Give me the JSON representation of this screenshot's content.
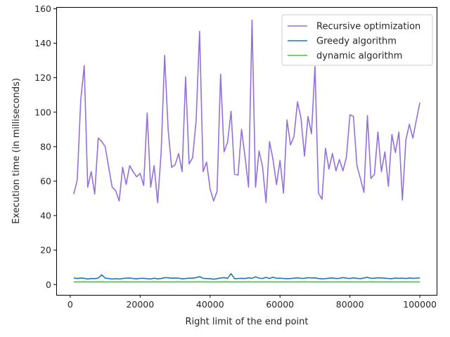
{
  "chart_data": {
    "type": "line",
    "title": "",
    "xlabel": "Right limit of the end point",
    "ylabel": "Execution time (in milliseconds)",
    "xlim": [
      -4000,
      105000
    ],
    "ylim": [
      -6,
      161
    ],
    "xticks": [
      0,
      20000,
      40000,
      60000,
      80000,
      100000
    ],
    "yticks": [
      0,
      20,
      40,
      60,
      80,
      100,
      120,
      140,
      160
    ],
    "grid": false,
    "legend_position": "top-right",
    "x": [
      1000,
      2000,
      3000,
      4000,
      5000,
      6000,
      7000,
      8000,
      9000,
      10000,
      11000,
      12000,
      13000,
      14000,
      15000,
      16000,
      17000,
      18000,
      19000,
      20000,
      21000,
      22000,
      23000,
      24000,
      25000,
      26000,
      27000,
      28000,
      29000,
      30000,
      31000,
      32000,
      33000,
      34000,
      35000,
      36000,
      37000,
      38000,
      39000,
      40000,
      41000,
      42000,
      43000,
      44000,
      45000,
      46000,
      47000,
      48000,
      49000,
      50000,
      51000,
      52000,
      53000,
      54000,
      55000,
      56000,
      57000,
      58000,
      59000,
      60000,
      61000,
      62000,
      63000,
      64000,
      65000,
      66000,
      67000,
      68000,
      69000,
      70000,
      71000,
      72000,
      73000,
      74000,
      75000,
      76000,
      77000,
      78000,
      79000,
      80000,
      81000,
      82000,
      83000,
      84000,
      85000,
      86000,
      87000,
      88000,
      89000,
      90000,
      91000,
      92000,
      93000,
      94000,
      95000,
      96000,
      97000,
      98000,
      99000,
      100000
    ],
    "series": [
      {
        "name": "Recursive optimization",
        "color": "#9370db",
        "values": [
          52.5,
          60.5,
          107,
          127,
          56.5,
          65.5,
          52.5,
          85,
          83,
          80,
          68,
          56.5,
          54.5,
          48.5,
          68,
          58,
          69,
          65.5,
          62.5,
          64.5,
          57.5,
          99.5,
          56.5,
          69,
          47.5,
          76.5,
          133,
          90,
          68,
          69.5,
          76,
          65.5,
          120.5,
          70,
          73.5,
          95,
          147,
          65.5,
          71,
          55.5,
          48.5,
          54,
          122,
          77,
          82.5,
          100.5,
          64,
          63.5,
          90,
          74,
          56.5,
          153.5,
          56.5,
          77.5,
          68.5,
          47.5,
          83,
          72.5,
          58,
          72,
          53,
          95.5,
          81,
          86,
          106,
          96.5,
          74.5,
          97.5,
          87.5,
          126.5,
          53,
          49.5,
          79,
          67,
          76,
          66,
          72.5,
          66,
          74,
          98.5,
          97.5,
          69,
          61.5,
          53.5,
          98,
          61.5,
          64,
          88.5,
          65.5,
          77,
          57,
          87,
          76.5,
          88.5,
          49,
          84,
          93,
          85,
          95.5,
          105.5
        ]
      },
      {
        "name": "Greedy algorithm",
        "color": "#1f77b4",
        "values": [
          3.8,
          3.5,
          3.8,
          3.6,
          3.2,
          3.5,
          3.4,
          3.7,
          5.6,
          3.7,
          3.5,
          3.2,
          3.4,
          3.2,
          3.5,
          3.7,
          3.8,
          3.5,
          3.3,
          3.6,
          3.6,
          3.4,
          3.2,
          3.7,
          3.3,
          3.5,
          4,
          3.9,
          3.7,
          3.8,
          3.7,
          3.3,
          3.5,
          3.7,
          3.7,
          4,
          4.6,
          3.6,
          3.5,
          3.4,
          3.1,
          3.4,
          3.8,
          4,
          3.6,
          6.3,
          3.4,
          3.5,
          3.6,
          3.5,
          3.9,
          3.6,
          4.5,
          3.7,
          3.5,
          4.2,
          3.5,
          4.3,
          3.6,
          3.7,
          3.5,
          3.4,
          3.5,
          3.7,
          3.9,
          3.6,
          3.6,
          4,
          3.8,
          3.9,
          3.5,
          3.3,
          3.4,
          3.7,
          3.8,
          3.5,
          3.6,
          4,
          3.7,
          3.5,
          3.9,
          3.6,
          3.4,
          3.8,
          4.2,
          3.6,
          3.7,
          3.9,
          3.8,
          3.7,
          3.5,
          3.4,
          3.8,
          3.6,
          3.7,
          3.5,
          3.8,
          3.6,
          3.7,
          3.9
        ]
      },
      {
        "name": "dynamic algorithm",
        "color": "#32cd32",
        "values": [
          1.5,
          1.5,
          1.5,
          1.6,
          1.5,
          1.5,
          1.5,
          1.5,
          1.6,
          1.5,
          1.5,
          1.5,
          1.5,
          1.5,
          1.6,
          1.5,
          1.5,
          1.5,
          1.5,
          1.5,
          1.5,
          1.5,
          1.5,
          1.6,
          1.5,
          1.5,
          1.5,
          1.5,
          1.5,
          1.5,
          1.6,
          1.5,
          1.5,
          1.5,
          1.5,
          1.5,
          1.6,
          1.5,
          1.5,
          1.5,
          1.5,
          1.5,
          1.5,
          1.6,
          1.5,
          1.5,
          1.5,
          1.5,
          1.5,
          1.5,
          1.6,
          1.5,
          1.5,
          1.5,
          1.5,
          1.5,
          1.5,
          1.5,
          1.5,
          1.5,
          1.5,
          1.5,
          1.5,
          1.5,
          1.5,
          1.5,
          1.6,
          1.5,
          1.5,
          1.5,
          1.5,
          1.5,
          1.5,
          1.5,
          1.5,
          1.5,
          1.5,
          1.5,
          1.5,
          1.5,
          1.5,
          1.5,
          1.5,
          1.5,
          1.5,
          1.6,
          1.5,
          1.5,
          1.5,
          1.5,
          1.5,
          1.5,
          1.5,
          1.5,
          1.5,
          1.5,
          1.5,
          1.5,
          1.5,
          1.5
        ]
      }
    ]
  }
}
